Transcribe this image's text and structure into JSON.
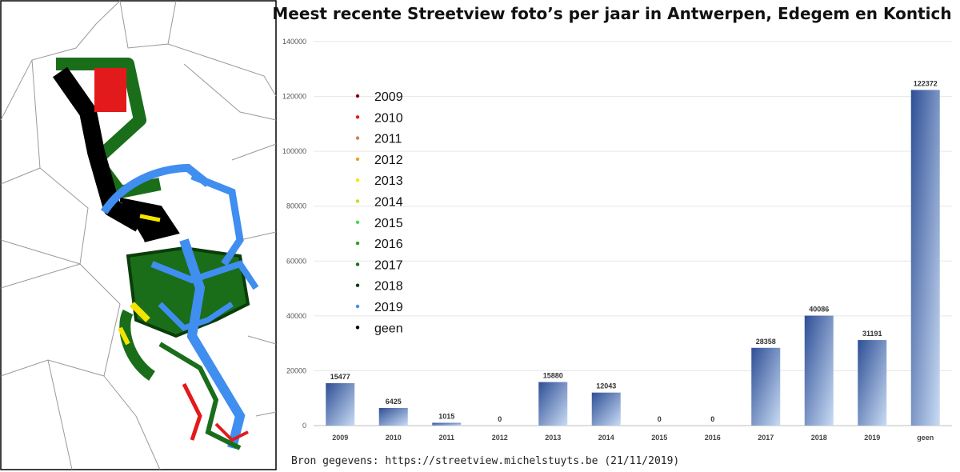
{
  "chart_data": {
    "type": "bar",
    "title": "Meest recente Streetview foto’s per jaar in Antwerpen, Edegem en Kontich",
    "categories": [
      "2009",
      "2010",
      "2011",
      "2012",
      "2013",
      "2014",
      "2015",
      "2016",
      "2017",
      "2018",
      "2019",
      "geen"
    ],
    "values": [
      15477,
      6425,
      1015,
      0,
      15880,
      12043,
      0,
      0,
      28358,
      40086,
      31191,
      122372
    ],
    "ylim": [
      0,
      140000
    ],
    "yticks": [
      "0",
      "20000",
      "40000",
      "60000",
      "80000",
      "100000",
      "120000",
      "140000"
    ],
    "grid": true,
    "xlabel": "",
    "ylabel": "",
    "bar_gradient": [
      "#2f4f96",
      "#c9dcf4"
    ]
  },
  "legend": {
    "items": [
      {
        "label": "2009",
        "color": "#8b0000"
      },
      {
        "label": "2010",
        "color": "#e31a1c"
      },
      {
        "label": "2011",
        "color": "#c8845a"
      },
      {
        "label": "2012",
        "color": "#f0a020"
      },
      {
        "label": "2013",
        "color": "#f5e400"
      },
      {
        "label": "2014",
        "color": "#b5e61d"
      },
      {
        "label": "2015",
        "color": "#4cd84c"
      },
      {
        "label": "2016",
        "color": "#2ca02c"
      },
      {
        "label": "2017",
        "color": "#1a6e1a"
      },
      {
        "label": "2018",
        "color": "#0b3d0b"
      },
      {
        "label": "2019",
        "color": "#3f8ef0"
      },
      {
        "label": "geen",
        "color": "#000000"
      }
    ]
  },
  "source": {
    "text": "Bron gegevens: https://streetview.michelstuyts.be (21/11/2019)"
  },
  "map": {
    "colors": {
      "red": "#e31a1c",
      "green": "#1a6e1a",
      "dark": "#000000",
      "blue": "#3f8ef0",
      "yellow": "#f5e400",
      "border": "#9a9a9a"
    }
  }
}
